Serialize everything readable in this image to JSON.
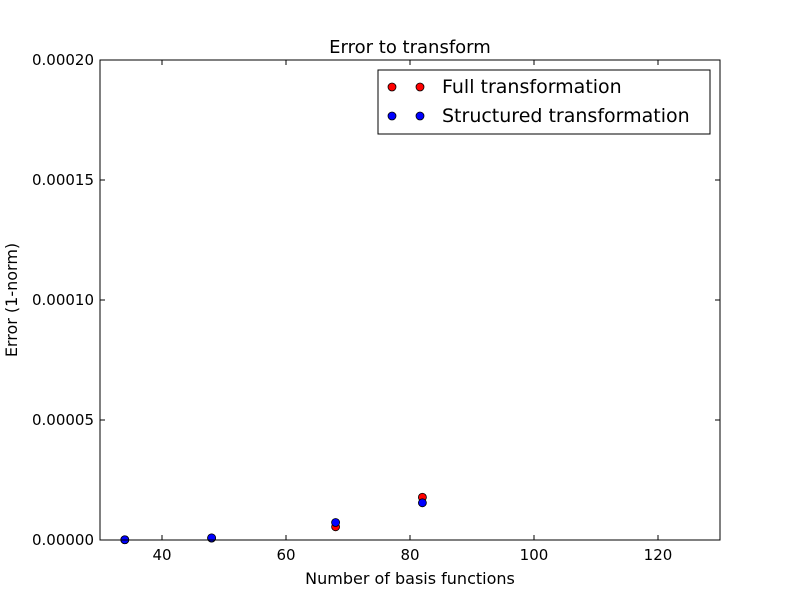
{
  "chart_data": {
    "type": "scatter",
    "title": "Error to transform",
    "xlabel": "Number of basis functions",
    "ylabel": "Error (1-norm)",
    "xlim": [
      30,
      130
    ],
    "ylim": [
      0,
      0.0002
    ],
    "xticks": [
      40,
      60,
      80,
      100,
      120
    ],
    "xtick_labels": [
      "40",
      "60",
      "80",
      "100",
      "120"
    ],
    "yticks": [
      0,
      5e-05,
      0.0001,
      0.00015,
      0.0002
    ],
    "ytick_labels": [
      "0.00000",
      "0.00005",
      "0.00010",
      "0.00015",
      "0.00020"
    ],
    "grid": false,
    "legend_position": "top-right",
    "series": [
      {
        "name": "Full transformation",
        "color": "#ff0000",
        "x": [
          34,
          48,
          68,
          82
        ],
        "y": [
          1e-07,
          8e-07,
          5.5e-06,
          1.78e-05
        ]
      },
      {
        "name": "Structured transformation",
        "color": "#0000ff",
        "x": [
          34,
          48,
          68,
          82
        ],
        "y": [
          1e-07,
          9e-07,
          7.3e-06,
          1.55e-05
        ]
      }
    ]
  }
}
